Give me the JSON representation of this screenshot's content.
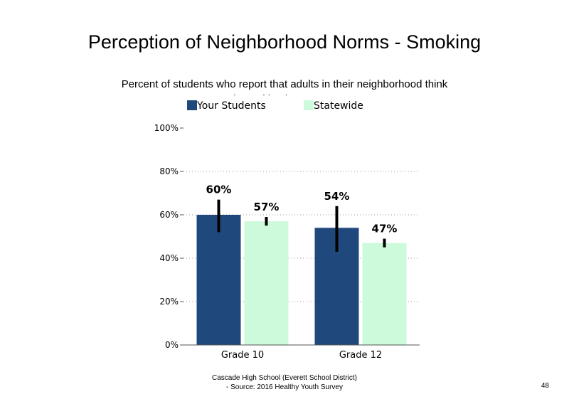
{
  "chart_data": {
    "type": "bar",
    "title": "Perception of Neighborhood Norms - Smoking",
    "subtitle": "Percent of students who report that adults in their neighborhood think youth smoking is \"very wrong\"",
    "categories": [
      "Grade 10",
      "Grade 12"
    ],
    "series": [
      {
        "name": "Your Students",
        "color": "#1f497d",
        "values": [
          60,
          54
        ],
        "labels": [
          "60%",
          "54%"
        ],
        "error": [
          [
            52,
            67
          ],
          [
            43,
            64
          ]
        ]
      },
      {
        "name": "Statewide",
        "color": "#ccfadb",
        "values": [
          57,
          47
        ],
        "labels": [
          "57%",
          "47%"
        ],
        "error": [
          [
            55,
            59
          ],
          [
            45,
            49
          ]
        ]
      }
    ],
    "ylim": [
      0,
      100
    ],
    "yticks": [
      "0%",
      "20%",
      "40%",
      "60%",
      "80%",
      "100%"
    ],
    "ytick_values": [
      0,
      20,
      40,
      60,
      80,
      100
    ],
    "grid": "dotted",
    "legend_position": "top"
  },
  "footer": {
    "line1": "Cascade High School (Everett School District)",
    "line2": "- Source: 2016 Healthy Youth Survey"
  },
  "page_number": "48"
}
